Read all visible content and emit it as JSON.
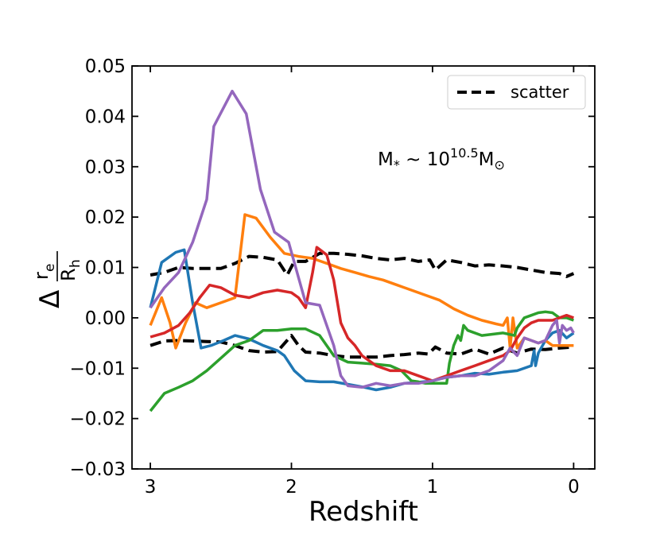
{
  "chart_data": {
    "type": "line",
    "xlabel": "Redshift",
    "ylabel": {
      "delta": "Δ",
      "num": "r",
      "num_sub": "e",
      "den": "R",
      "den_sub": "h"
    },
    "annotation": {
      "base": "M",
      "sub": "*",
      "op": " ~ 10",
      "exp": "10.5",
      "base2": "M",
      "sub2": "⊙"
    },
    "xlim": [
      3.13,
      -0.15
    ],
    "ylim": [
      -0.03,
      0.05
    ],
    "xticks": [
      3,
      2,
      1,
      0
    ],
    "xtick_labels": [
      "3",
      "2",
      "1",
      "0"
    ],
    "yticks": [
      -0.03,
      -0.02,
      -0.01,
      0.0,
      0.01,
      0.02,
      0.03,
      0.04,
      0.05
    ],
    "ytick_labels": [
      "−0.03",
      "−0.02",
      "−0.01",
      "0.00",
      "0.01",
      "0.02",
      "0.03",
      "0.04",
      "0.05"
    ],
    "grid": false,
    "legend": {
      "position": "top-right",
      "entries": [
        {
          "label": "scatter",
          "style": "dashed",
          "color": "#000000"
        }
      ]
    },
    "series": [
      {
        "color": "#000000",
        "style": "dashed",
        "points": [
          [
            3,
            0.0085
          ],
          [
            2.9,
            0.009
          ],
          [
            2.8,
            0.01
          ],
          [
            2.7,
            0.0098
          ],
          [
            2.6,
            0.0098
          ],
          [
            2.5,
            0.0098
          ],
          [
            2.4,
            0.0108
          ],
          [
            2.3,
            0.0122
          ],
          [
            2.2,
            0.012
          ],
          [
            2.1,
            0.0115
          ],
          [
            2.03,
            0.0085
          ],
          [
            1.98,
            0.0112
          ],
          [
            1.9,
            0.0112
          ],
          [
            1.8,
            0.0128
          ],
          [
            1.7,
            0.0128
          ],
          [
            1.6,
            0.0126
          ],
          [
            1.5,
            0.0123
          ],
          [
            1.4,
            0.0118
          ],
          [
            1.3,
            0.0115
          ],
          [
            1.2,
            0.0118
          ],
          [
            1.1,
            0.0112
          ],
          [
            1.02,
            0.0115
          ],
          [
            0.98,
            0.0095
          ],
          [
            0.9,
            0.0115
          ],
          [
            0.8,
            0.011
          ],
          [
            0.7,
            0.0103
          ],
          [
            0.6,
            0.0105
          ],
          [
            0.5,
            0.0103
          ],
          [
            0.4,
            0.01
          ],
          [
            0.3,
            0.0095
          ],
          [
            0.2,
            0.009
          ],
          [
            0.1,
            0.0088
          ],
          [
            0.05,
            0.0082
          ],
          [
            0.0,
            0.0088
          ]
        ]
      },
      {
        "color": "#000000",
        "style": "dashed",
        "points": [
          [
            3,
            -0.0055
          ],
          [
            2.9,
            -0.0046
          ],
          [
            2.8,
            -0.0045
          ],
          [
            2.7,
            -0.0046
          ],
          [
            2.6,
            -0.0047
          ],
          [
            2.5,
            -0.0048
          ],
          [
            2.4,
            -0.0055
          ],
          [
            2.3,
            -0.0065
          ],
          [
            2.2,
            -0.0068
          ],
          [
            2.1,
            -0.0067
          ],
          [
            2.0,
            -0.0035
          ],
          [
            1.95,
            -0.0055
          ],
          [
            1.9,
            -0.0068
          ],
          [
            1.8,
            -0.007
          ],
          [
            1.7,
            -0.0075
          ],
          [
            1.6,
            -0.0078
          ],
          [
            1.5,
            -0.0078
          ],
          [
            1.4,
            -0.0078
          ],
          [
            1.3,
            -0.0075
          ],
          [
            1.2,
            -0.0073
          ],
          [
            1.1,
            -0.007
          ],
          [
            1.03,
            -0.0072
          ],
          [
            0.98,
            -0.0058
          ],
          [
            0.9,
            -0.007
          ],
          [
            0.8,
            -0.0072
          ],
          [
            0.7,
            -0.0062
          ],
          [
            0.6,
            -0.0072
          ],
          [
            0.5,
            -0.006
          ],
          [
            0.4,
            -0.007
          ],
          [
            0.3,
            -0.0062
          ],
          [
            0.2,
            -0.0063
          ],
          [
            0.1,
            -0.006
          ],
          [
            0.0,
            -0.0058
          ]
        ]
      },
      {
        "color": "#1f77b4",
        "style": "solid",
        "points": [
          [
            3,
            0.002
          ],
          [
            2.92,
            0.011
          ],
          [
            2.82,
            0.013
          ],
          [
            2.76,
            0.0135
          ],
          [
            2.7,
            0.003
          ],
          [
            2.64,
            -0.006
          ],
          [
            2.57,
            -0.0055
          ],
          [
            2.48,
            -0.0045
          ],
          [
            2.4,
            -0.0035
          ],
          [
            2.3,
            -0.0042
          ],
          [
            2.2,
            -0.0055
          ],
          [
            2.1,
            -0.0065
          ],
          [
            2.05,
            -0.0075
          ],
          [
            1.98,
            -0.0105
          ],
          [
            1.9,
            -0.0125
          ],
          [
            1.8,
            -0.0127
          ],
          [
            1.7,
            -0.0127
          ],
          [
            1.6,
            -0.0132
          ],
          [
            1.5,
            -0.0137
          ],
          [
            1.4,
            -0.0143
          ],
          [
            1.3,
            -0.0138
          ],
          [
            1.2,
            -0.013
          ],
          [
            1.1,
            -0.0128
          ],
          [
            1.0,
            -0.0125
          ],
          [
            0.9,
            -0.0118
          ],
          [
            0.8,
            -0.0115
          ],
          [
            0.7,
            -0.011
          ],
          [
            0.6,
            -0.0112
          ],
          [
            0.5,
            -0.0108
          ],
          [
            0.4,
            -0.0105
          ],
          [
            0.3,
            -0.0095
          ],
          [
            0.28,
            -0.0065
          ],
          [
            0.27,
            -0.0095
          ],
          [
            0.25,
            -0.007
          ],
          [
            0.22,
            -0.0055
          ],
          [
            0.2,
            -0.0045
          ],
          [
            0.15,
            -0.003
          ],
          [
            0.1,
            -0.0025
          ],
          [
            0.05,
            -0.004
          ],
          [
            0.0,
            -0.003
          ]
        ]
      },
      {
        "color": "#ff7f0e",
        "style": "solid",
        "points": [
          [
            3,
            -0.0015
          ],
          [
            2.92,
            0.004
          ],
          [
            2.86,
            -0.001
          ],
          [
            2.82,
            -0.006
          ],
          [
            2.75,
            -0.001
          ],
          [
            2.68,
            0.003
          ],
          [
            2.6,
            0.002
          ],
          [
            2.5,
            0.003
          ],
          [
            2.4,
            0.004
          ],
          [
            2.33,
            0.0205
          ],
          [
            2.25,
            0.0198
          ],
          [
            2.15,
            0.016
          ],
          [
            2.05,
            0.0128
          ],
          [
            1.95,
            0.0122
          ],
          [
            1.85,
            0.0118
          ],
          [
            1.75,
            0.0108
          ],
          [
            1.65,
            0.0098
          ],
          [
            1.55,
            0.009
          ],
          [
            1.45,
            0.0082
          ],
          [
            1.35,
            0.0075
          ],
          [
            1.25,
            0.0065
          ],
          [
            1.15,
            0.0055
          ],
          [
            1.05,
            0.0045
          ],
          [
            0.95,
            0.0035
          ],
          [
            0.85,
            0.0018
          ],
          [
            0.75,
            0.0005
          ],
          [
            0.65,
            -0.0005
          ],
          [
            0.55,
            -0.0012
          ],
          [
            0.5,
            -0.0015
          ],
          [
            0.47,
            0.0
          ],
          [
            0.45,
            -0.006
          ],
          [
            0.43,
            0.0
          ],
          [
            0.4,
            -0.006
          ],
          [
            0.35,
            -0.004
          ],
          [
            0.3,
            -0.0045
          ],
          [
            0.25,
            -0.005
          ],
          [
            0.2,
            -0.0045
          ],
          [
            0.15,
            -0.0055
          ],
          [
            0.1,
            -0.0055
          ],
          [
            0.05,
            -0.0055
          ],
          [
            0.0,
            -0.0055
          ]
        ]
      },
      {
        "color": "#2ca02c",
        "style": "solid",
        "points": [
          [
            3,
            -0.0185
          ],
          [
            2.9,
            -0.015
          ],
          [
            2.8,
            -0.0138
          ],
          [
            2.7,
            -0.0125
          ],
          [
            2.6,
            -0.0105
          ],
          [
            2.5,
            -0.008
          ],
          [
            2.4,
            -0.0055
          ],
          [
            2.3,
            -0.0045
          ],
          [
            2.2,
            -0.0025
          ],
          [
            2.1,
            -0.0025
          ],
          [
            2.0,
            -0.0022
          ],
          [
            1.9,
            -0.0022
          ],
          [
            1.8,
            -0.0035
          ],
          [
            1.7,
            -0.0075
          ],
          [
            1.6,
            -0.0088
          ],
          [
            1.5,
            -0.009
          ],
          [
            1.4,
            -0.0092
          ],
          [
            1.3,
            -0.0095
          ],
          [
            1.22,
            -0.0105
          ],
          [
            1.15,
            -0.0125
          ],
          [
            1.1,
            -0.0127
          ],
          [
            1.05,
            -0.013
          ],
          [
            1.0,
            -0.013
          ],
          [
            0.9,
            -0.013
          ],
          [
            0.88,
            -0.009
          ],
          [
            0.85,
            -0.0055
          ],
          [
            0.82,
            -0.0035
          ],
          [
            0.8,
            -0.0045
          ],
          [
            0.78,
            -0.0015
          ],
          [
            0.75,
            -0.0025
          ],
          [
            0.65,
            -0.0035
          ],
          [
            0.5,
            -0.003
          ],
          [
            0.42,
            -0.0035
          ],
          [
            0.4,
            -0.002
          ],
          [
            0.35,
            0.0
          ],
          [
            0.3,
            0.0005
          ],
          [
            0.25,
            0.001
          ],
          [
            0.2,
            0.0012
          ],
          [
            0.15,
            0.001
          ],
          [
            0.1,
            0.0
          ],
          [
            0.05,
            0.0
          ],
          [
            0.0,
            -0.0005
          ]
        ]
      },
      {
        "color": "#d62728",
        "style": "solid",
        "points": [
          [
            3,
            -0.0038
          ],
          [
            2.9,
            -0.003
          ],
          [
            2.8,
            -0.0015
          ],
          [
            2.72,
            0.001
          ],
          [
            2.65,
            0.004
          ],
          [
            2.58,
            0.0065
          ],
          [
            2.5,
            0.006
          ],
          [
            2.4,
            0.0045
          ],
          [
            2.3,
            0.004
          ],
          [
            2.2,
            0.005
          ],
          [
            2.1,
            0.0055
          ],
          [
            2.0,
            0.005
          ],
          [
            1.95,
            0.004
          ],
          [
            1.9,
            0.002
          ],
          [
            1.85,
            0.009
          ],
          [
            1.82,
            0.014
          ],
          [
            1.75,
            0.0125
          ],
          [
            1.7,
            0.0075
          ],
          [
            1.65,
            -0.001
          ],
          [
            1.6,
            -0.004
          ],
          [
            1.55,
            -0.0055
          ],
          [
            1.5,
            -0.0075
          ],
          [
            1.4,
            -0.0095
          ],
          [
            1.3,
            -0.0105
          ],
          [
            1.2,
            -0.0105
          ],
          [
            1.1,
            -0.0115
          ],
          [
            1.0,
            -0.0125
          ],
          [
            0.95,
            -0.012
          ],
          [
            0.9,
            -0.0115
          ],
          [
            0.8,
            -0.0105
          ],
          [
            0.7,
            -0.0095
          ],
          [
            0.6,
            -0.0085
          ],
          [
            0.5,
            -0.0075
          ],
          [
            0.45,
            -0.0065
          ],
          [
            0.4,
            -0.004
          ],
          [
            0.35,
            -0.002
          ],
          [
            0.3,
            -0.001
          ],
          [
            0.25,
            -0.0005
          ],
          [
            0.2,
            -0.0005
          ],
          [
            0.15,
            -0.0005
          ],
          [
            0.1,
            0.0
          ],
          [
            0.05,
            0.0005
          ],
          [
            0.0,
            0.0
          ]
        ]
      },
      {
        "color": "#9467bd",
        "style": "solid",
        "points": [
          [
            3,
            0.002
          ],
          [
            2.9,
            0.006
          ],
          [
            2.8,
            0.009
          ],
          [
            2.7,
            0.015
          ],
          [
            2.6,
            0.0235
          ],
          [
            2.55,
            0.038
          ],
          [
            2.42,
            0.045
          ],
          [
            2.32,
            0.0405
          ],
          [
            2.22,
            0.0255
          ],
          [
            2.12,
            0.017
          ],
          [
            2.02,
            0.015
          ],
          [
            1.95,
            0.008
          ],
          [
            1.9,
            0.003
          ],
          [
            1.8,
            0.0025
          ],
          [
            1.75,
            -0.0015
          ],
          [
            1.7,
            -0.0055
          ],
          [
            1.65,
            -0.0115
          ],
          [
            1.6,
            -0.0135
          ],
          [
            1.5,
            -0.0138
          ],
          [
            1.4,
            -0.013
          ],
          [
            1.3,
            -0.0135
          ],
          [
            1.2,
            -0.013
          ],
          [
            1.1,
            -0.013
          ],
          [
            1.0,
            -0.0125
          ],
          [
            0.9,
            -0.0118
          ],
          [
            0.8,
            -0.0115
          ],
          [
            0.7,
            -0.0115
          ],
          [
            0.6,
            -0.0105
          ],
          [
            0.5,
            -0.0085
          ],
          [
            0.45,
            -0.006
          ],
          [
            0.4,
            -0.0075
          ],
          [
            0.35,
            -0.004
          ],
          [
            0.3,
            -0.0045
          ],
          [
            0.25,
            -0.005
          ],
          [
            0.2,
            -0.0045
          ],
          [
            0.15,
            -0.0015
          ],
          [
            0.12,
            -0.0005
          ],
          [
            0.1,
            -0.005
          ],
          [
            0.08,
            -0.0015
          ],
          [
            0.05,
            -0.0025
          ],
          [
            0.02,
            -0.002
          ],
          [
            0.0,
            -0.003
          ]
        ]
      }
    ]
  }
}
